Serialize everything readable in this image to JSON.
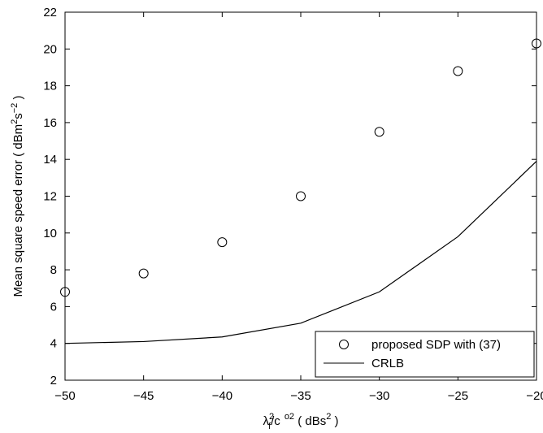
{
  "chart_data": {
    "type": "line",
    "title": "",
    "xlabel": {
      "prefix": "λ",
      "prefix_sub": "f",
      "prefix_sup": "2",
      "middle": "/c",
      "middle_sup": "o2",
      "suffix_open": " ( dBs",
      "suffix_sup": "2",
      "suffix_close": " )"
    },
    "ylabel": {
      "base": "Mean square speed error ( dBm",
      "sup1": "2",
      "mid": "s",
      "sup2": "−2",
      "close": " )"
    },
    "xlim": [
      -50,
      -20
    ],
    "ylim": [
      2,
      22
    ],
    "x_ticks": [
      -50,
      -45,
      -40,
      -35,
      -30,
      -25,
      -20
    ],
    "x_tick_labels": [
      "−50",
      "−45",
      "−40",
      "−35",
      "−30",
      "−25",
      "−20"
    ],
    "y_ticks": [
      2,
      4,
      6,
      8,
      10,
      12,
      14,
      16,
      18,
      20,
      22
    ],
    "y_tick_labels": [
      "2",
      "4",
      "6",
      "8",
      "10",
      "12",
      "14",
      "16",
      "18",
      "20",
      "22"
    ],
    "grid": false,
    "legend_position": "bottom-right",
    "series": [
      {
        "name": "proposed SDP with (37)",
        "style": "markers",
        "marker": "circle",
        "color": "#000000",
        "x": [
          -50,
          -45,
          -40,
          -35,
          -30,
          -25,
          -20
        ],
        "y": [
          6.8,
          7.8,
          9.5,
          12.0,
          15.5,
          18.8,
          20.3
        ]
      },
      {
        "name": "CRLB",
        "style": "line",
        "color": "#000000",
        "x": [
          -50,
          -45,
          -40,
          -35,
          -30,
          -25,
          -20
        ],
        "y": [
          4.0,
          4.1,
          4.35,
          5.1,
          6.8,
          9.8,
          13.9
        ]
      }
    ]
  }
}
